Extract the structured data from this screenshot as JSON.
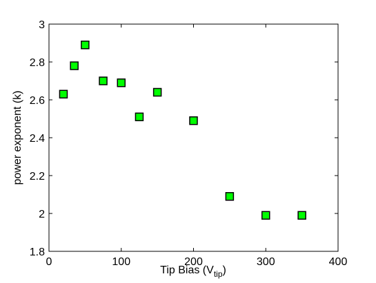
{
  "chart_data": {
    "type": "scatter",
    "title": "",
    "xlabel_main": "Tip Bias (V",
    "xlabel_sub": "tip",
    "xlabel_close": ")",
    "ylabel": "power exponent (k)",
    "xlim": [
      0,
      400
    ],
    "ylim": [
      1.8,
      3.0
    ],
    "xticks": [
      0,
      100,
      200,
      300,
      400
    ],
    "yticks": [
      1.8,
      2.0,
      2.2,
      2.4,
      2.6,
      2.8,
      3.0
    ],
    "xtick_labels": [
      "0",
      "100",
      "200",
      "300",
      "400"
    ],
    "ytick_labels": [
      "1.8",
      "2",
      "2.2",
      "2.4",
      "2.6",
      "2.8",
      "3"
    ],
    "grid": false,
    "marker": "square",
    "marker_color": "#00ff00",
    "marker_edge_color": "#000000",
    "series": [
      {
        "x": [
          20,
          35,
          50,
          75,
          100,
          125,
          150,
          200,
          250,
          300,
          350
        ],
        "y": [
          2.63,
          2.78,
          2.89,
          2.7,
          2.69,
          2.51,
          2.64,
          2.49,
          2.09,
          1.99,
          1.99
        ]
      }
    ]
  }
}
